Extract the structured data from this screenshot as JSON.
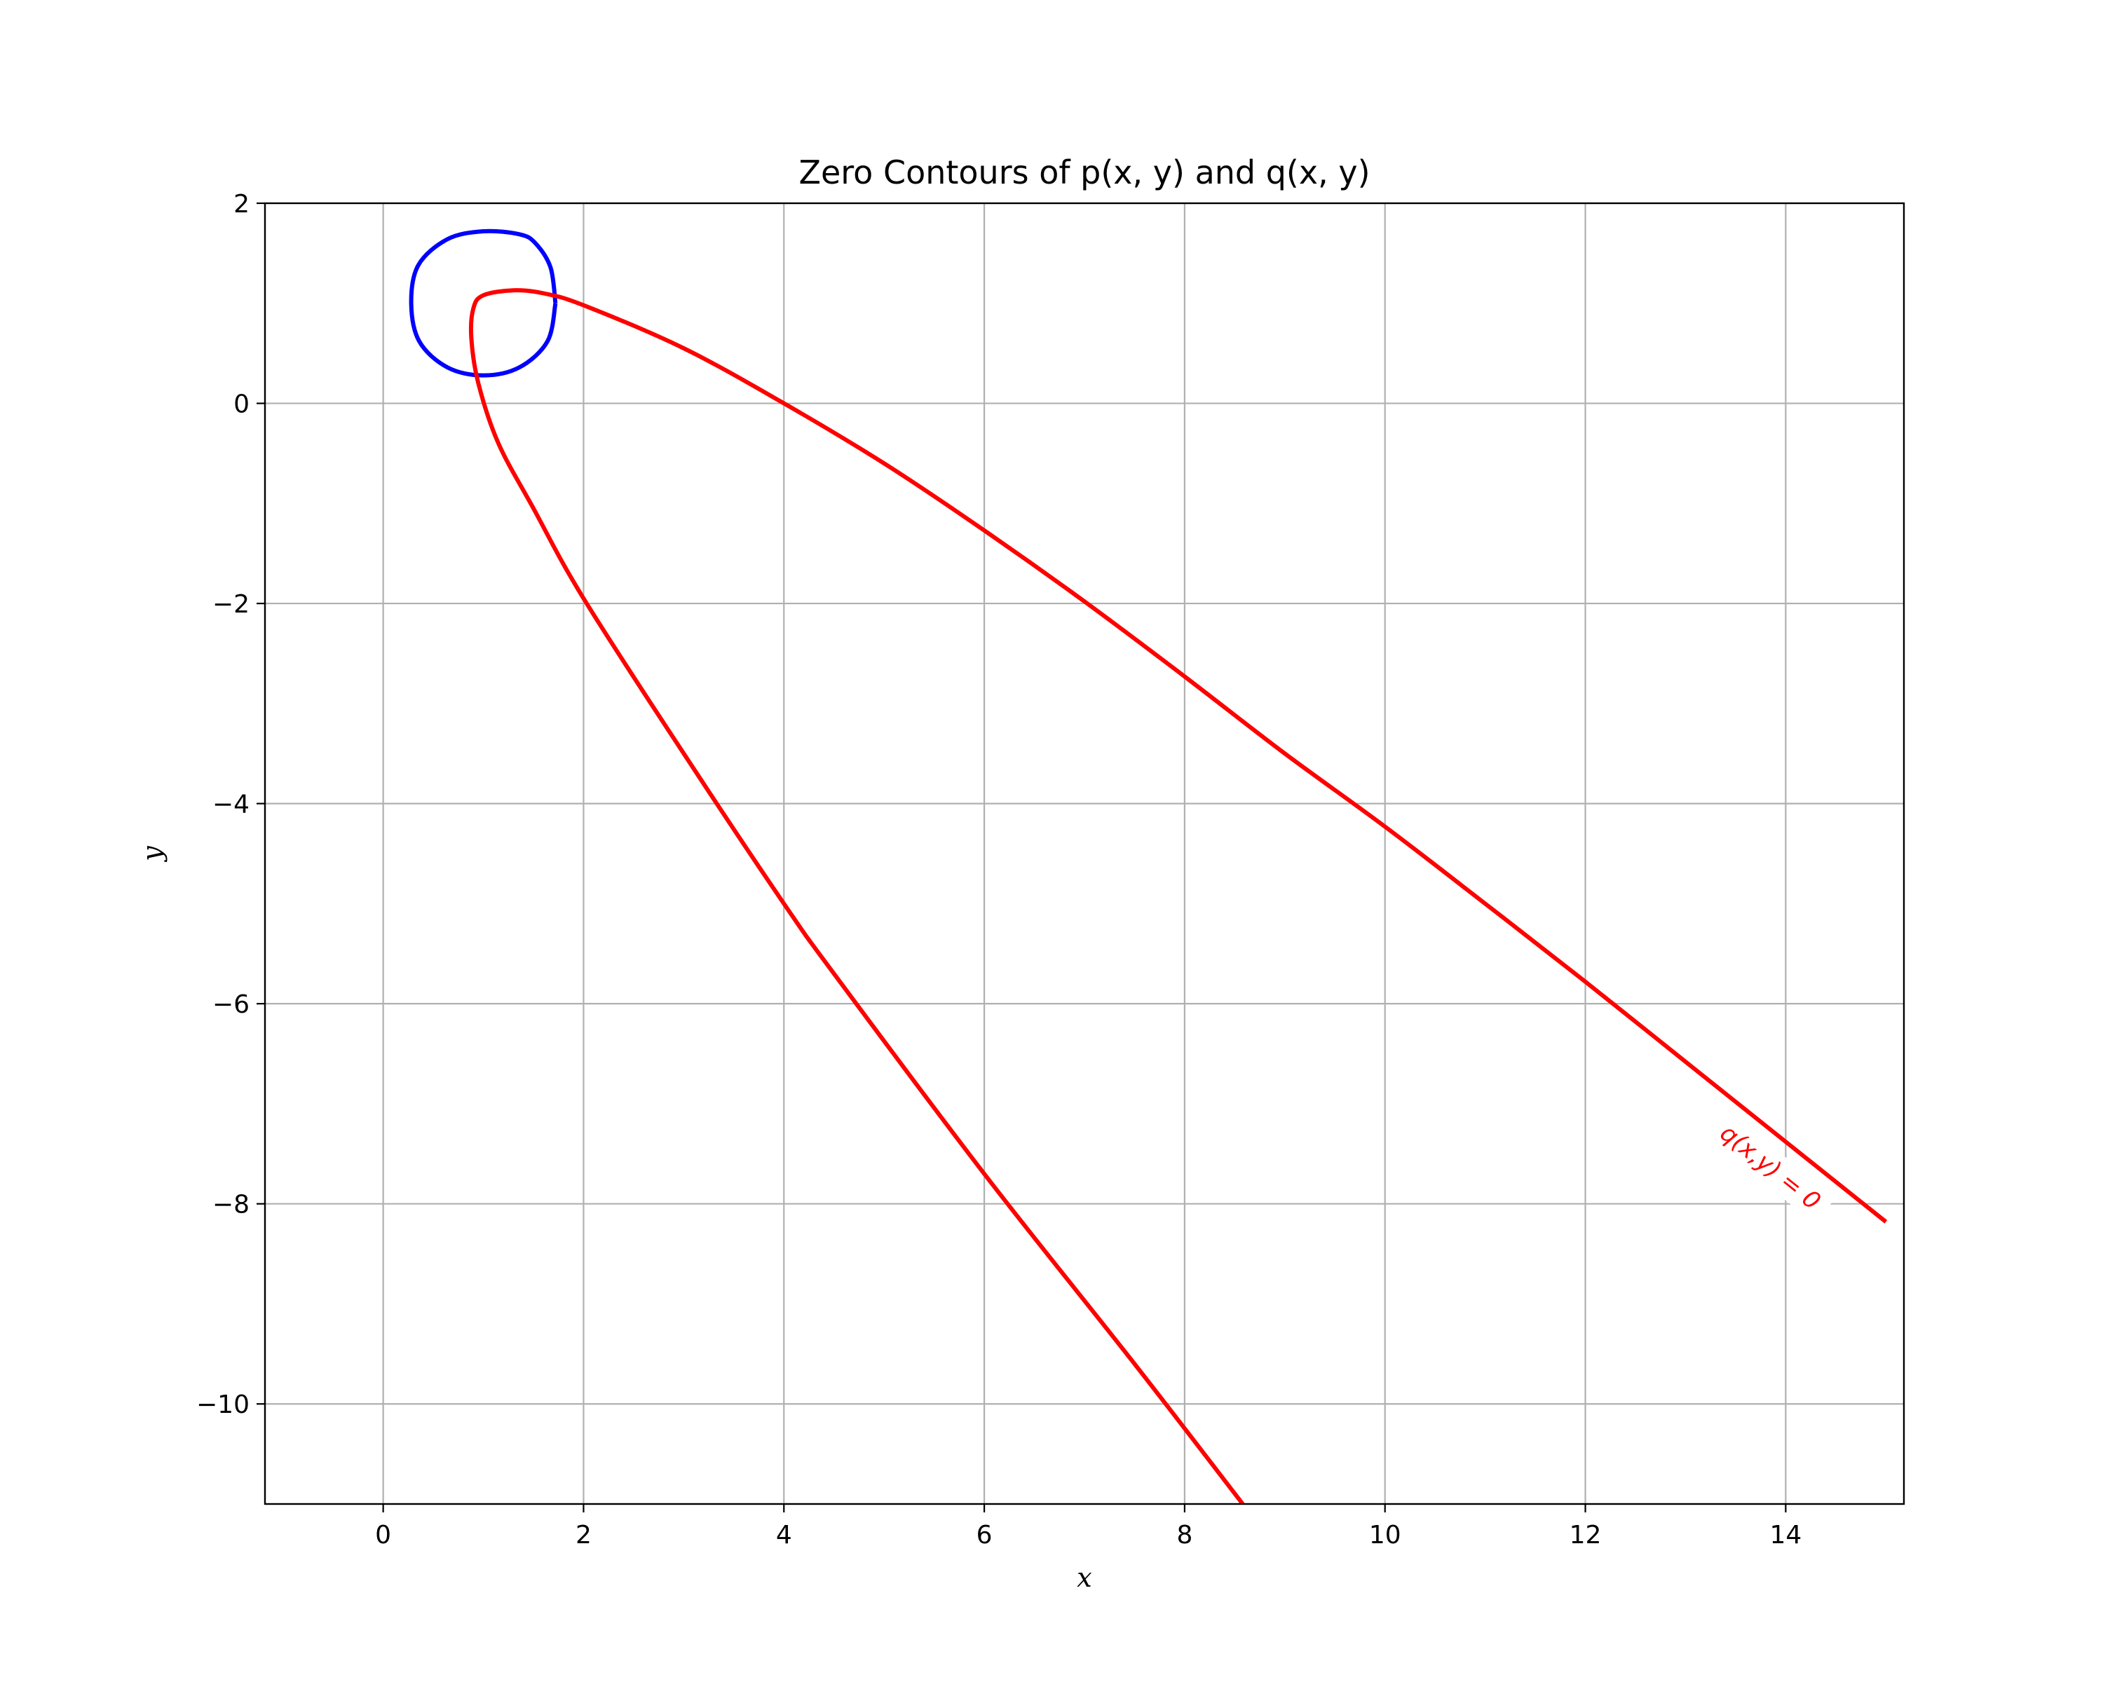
{
  "chart_data": {
    "type": "line",
    "title": "Zero Contours of p(x, y) and q(x, y)",
    "xlabel": "x",
    "ylabel": "y",
    "xlim": [
      -1.18,
      15.18
    ],
    "ylim": [
      -11,
      2
    ],
    "xticks": [
      0,
      2,
      4,
      6,
      8,
      10,
      12,
      14
    ],
    "yticks": [
      -10,
      -8,
      -6,
      -4,
      -2,
      0,
      2
    ],
    "xtick_labels": [
      "0",
      "2",
      "4",
      "6",
      "8",
      "10",
      "12",
      "14"
    ],
    "ytick_labels": [
      "−10",
      "−8",
      "−6",
      "−4",
      "−2",
      "0",
      "2"
    ],
    "grid": true,
    "colors": {
      "p_contour": "#0000ff",
      "q_contour": "#ff0000",
      "grid": "#b0b0b0"
    },
    "series": [
      {
        "points": [
          [
            1.72,
            1.0
          ],
          [
            1.67,
            1.36
          ],
          [
            1.52,
            1.6
          ],
          [
            1.36,
            1.69
          ],
          [
            1.0,
            1.72
          ],
          [
            0.64,
            1.64
          ],
          [
            0.35,
            1.38
          ],
          [
            0.28,
            1.0
          ],
          [
            0.36,
            0.62
          ],
          [
            0.64,
            0.36
          ],
          [
            1.0,
            0.28
          ],
          [
            1.36,
            0.36
          ],
          [
            1.64,
            0.62
          ],
          [
            1.72,
            1.0
          ]
        ]
      },
      {
        "contour_label": "q(x,y) = 0",
        "points": [
          [
            8.58,
            -11.0
          ],
          [
            7.5,
            -9.6
          ],
          [
            6.0,
            -7.7
          ],
          [
            4.5,
            -5.7
          ],
          [
            4.0,
            -5.0
          ],
          [
            3.0,
            -3.5
          ],
          [
            2.0,
            -1.95
          ],
          [
            1.5,
            -1.05
          ],
          [
            1.15,
            -0.4
          ],
          [
            0.95,
            0.2
          ],
          [
            0.88,
            0.65
          ],
          [
            0.9,
            0.95
          ],
          [
            1.0,
            1.08
          ],
          [
            1.3,
            1.13
          ],
          [
            1.6,
            1.1
          ],
          [
            2.0,
            0.98
          ],
          [
            3.0,
            0.55
          ],
          [
            4.0,
            0.0
          ],
          [
            5.0,
            -0.6
          ],
          [
            6.0,
            -1.27
          ],
          [
            7.0,
            -1.98
          ],
          [
            8.0,
            -2.73
          ],
          [
            9.0,
            -3.5
          ],
          [
            10.0,
            -4.23
          ],
          [
            11.0,
            -5.0
          ],
          [
            12.0,
            -5.78
          ],
          [
            13.0,
            -6.58
          ],
          [
            14.0,
            -7.38
          ],
          [
            15.0,
            -8.18
          ]
        ]
      }
    ]
  }
}
